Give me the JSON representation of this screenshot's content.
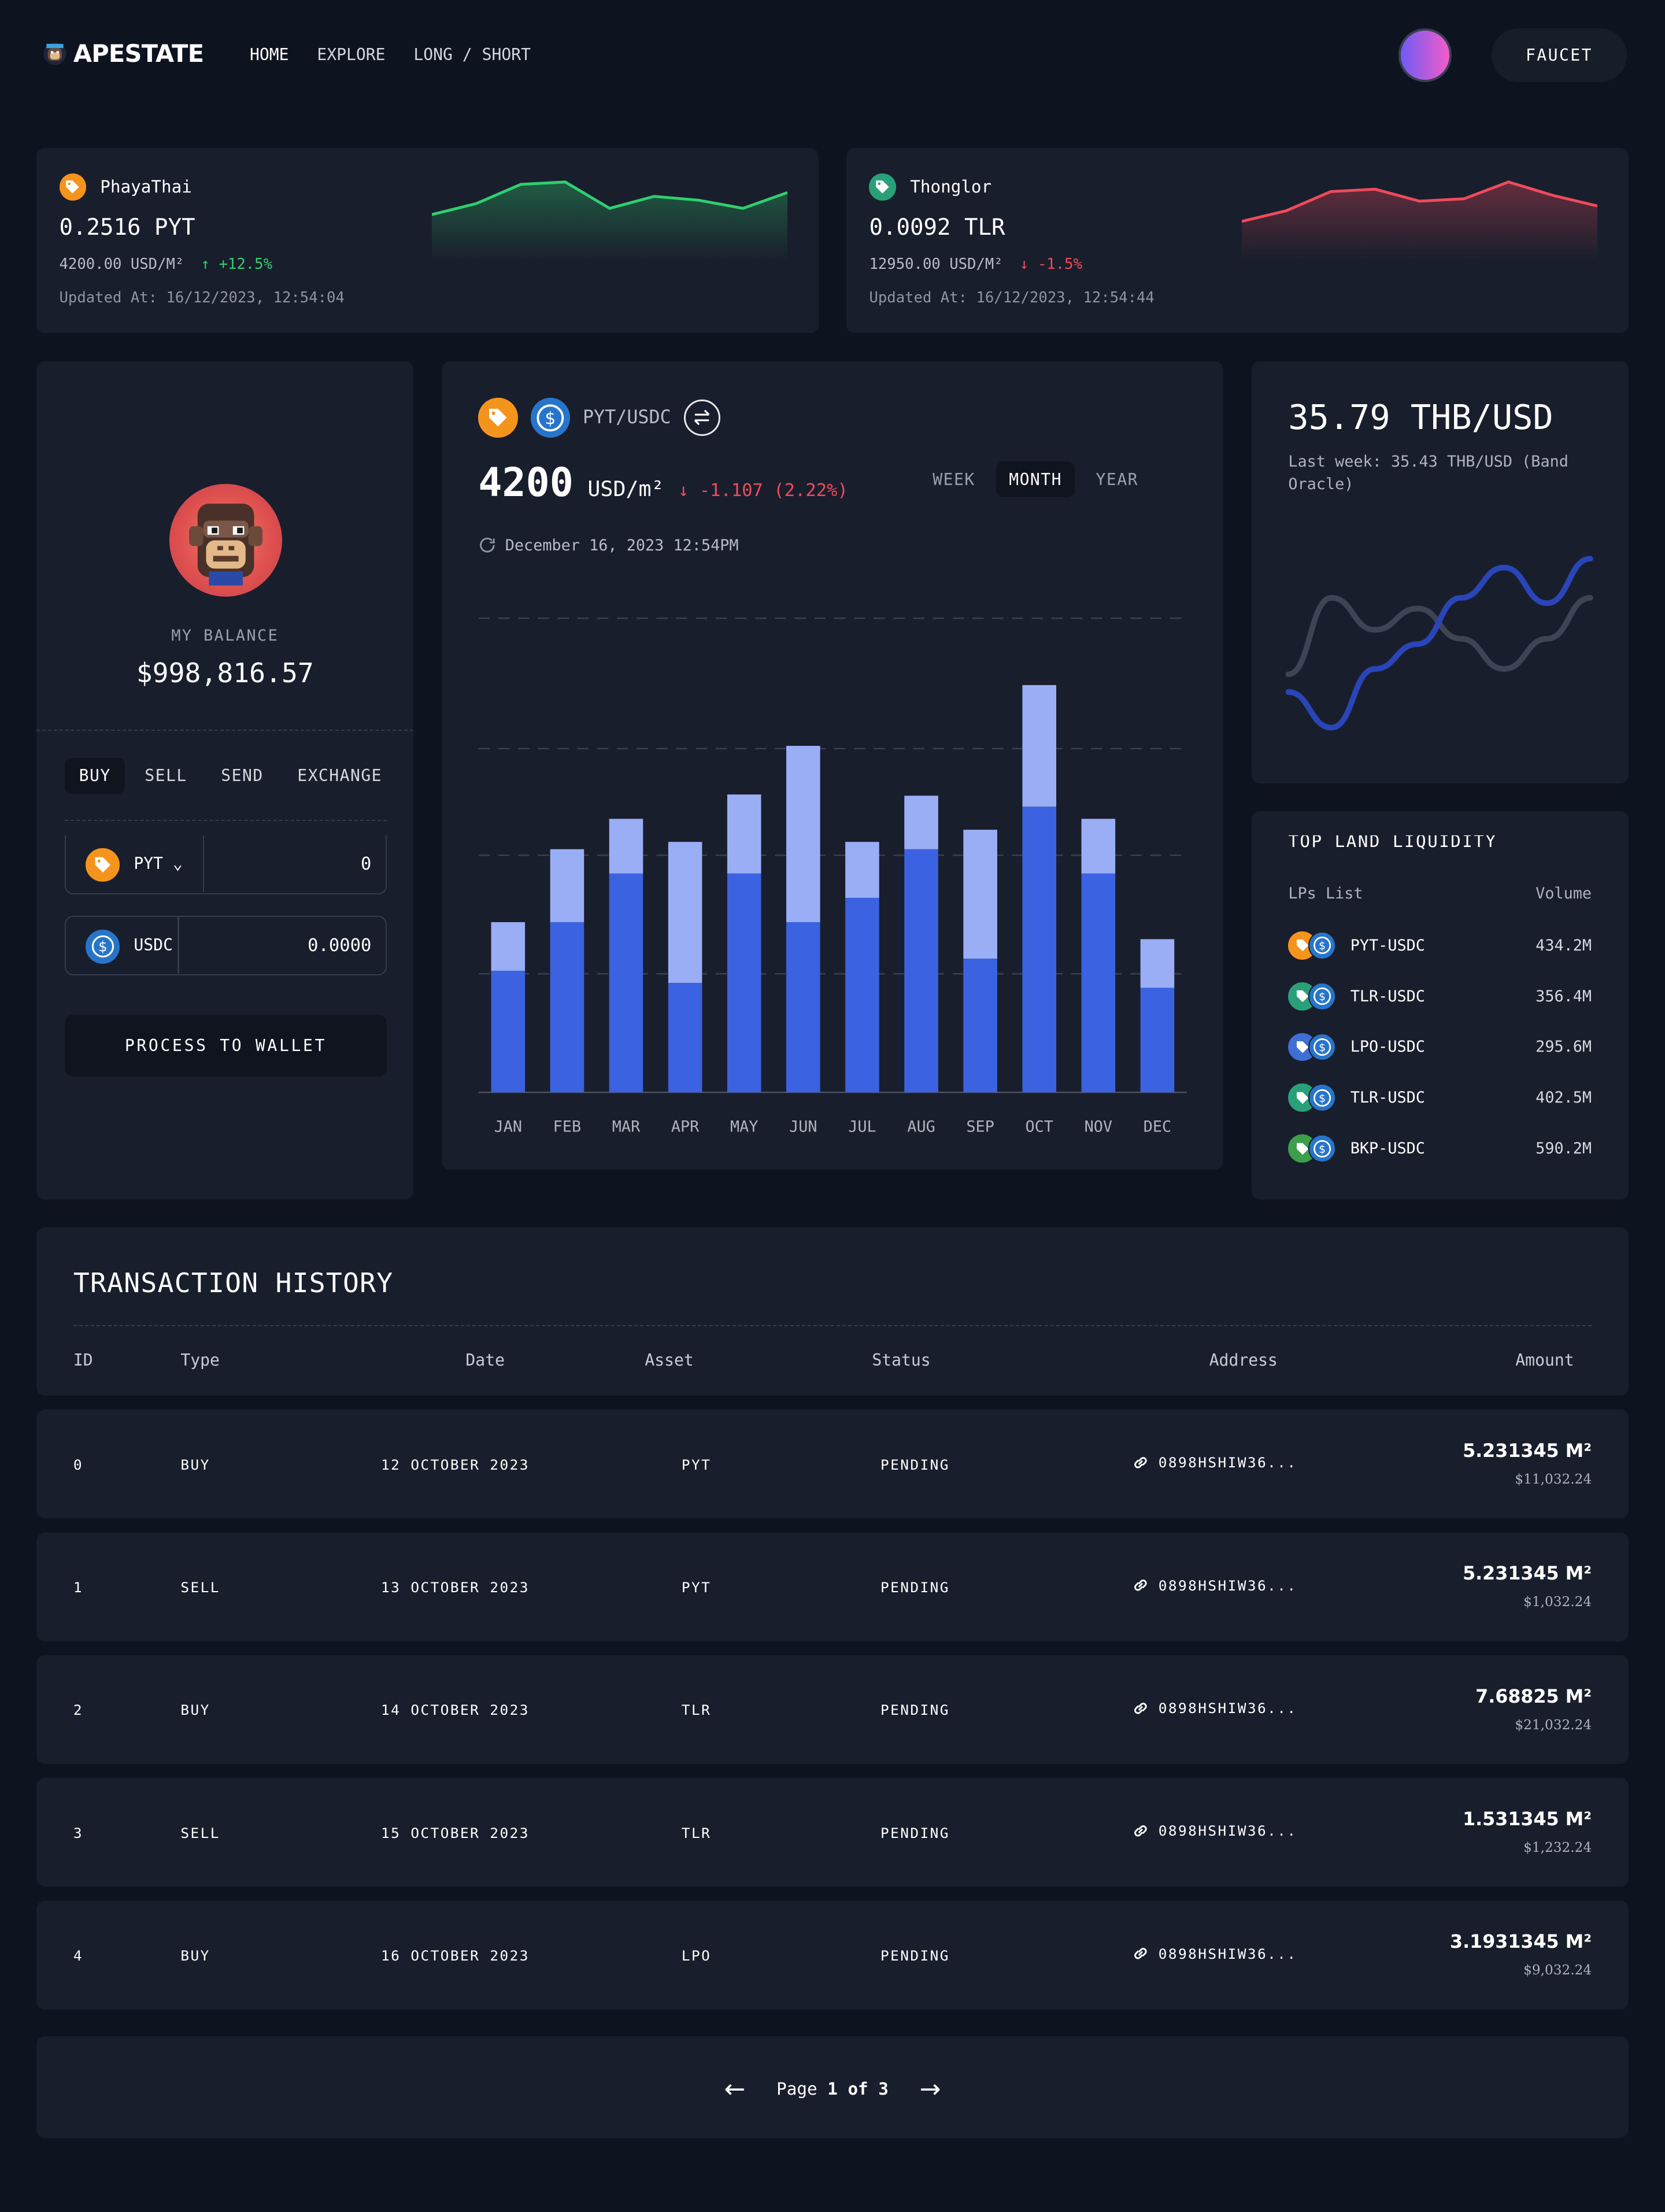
{
  "header": {
    "brand": "APESTATE",
    "nav": [
      "HOME",
      "EXPLORE",
      "LONG / SHORT"
    ],
    "faucet_label": "FAUCET"
  },
  "tickers": [
    {
      "name": "PhayaThai",
      "price": "0.2516 PYT",
      "usd": "4200.00 USD/M²",
      "change": "+12.5%",
      "updated": "Updated At: 16/12/2023, 12:54:04",
      "color": "#2fcf6f",
      "icon_color": "#f5941d",
      "spark": [
        0.32,
        0.55,
        0.95,
        1.0,
        0.45,
        0.7,
        0.62,
        0.45,
        0.78
      ]
    },
    {
      "name": "Thonglor",
      "price": "0.0092 TLR",
      "usd": "12950.00 USD/M²",
      "change": "-1.5%",
      "updated": "Updated At: 16/12/2023, 12:54:44",
      "color": "#ef4b5c",
      "icon_color": "#2aa079",
      "spark": [
        0.18,
        0.4,
        0.8,
        0.85,
        0.6,
        0.65,
        1.0,
        0.72,
        0.5
      ]
    }
  ],
  "balance": {
    "label": "MY BALANCE",
    "value": "$998,816.57",
    "tabs": [
      "BUY",
      "SELL",
      "SEND",
      "EXCHANGE"
    ],
    "from": {
      "symbol": "PYT",
      "value": "0"
    },
    "to": {
      "symbol": "USDC",
      "value": "0.0000"
    },
    "process_label": "PROCESS TO WALLET"
  },
  "chart_card": {
    "pair": "PYT/USDC",
    "price": "4200",
    "unit": "USD/m²",
    "change": "↓ -1.107 (2.22%)",
    "periods": [
      "WEEK",
      "MONTH",
      "YEAR"
    ],
    "date": "December 16, 2023 12:54PM"
  },
  "chart_data": {
    "type": "bar",
    "categories": [
      "JAN",
      "FEB",
      "MAR",
      "APR",
      "MAY",
      "JUN",
      "JUL",
      "AUG",
      "SEP",
      "OCT",
      "NOV",
      "DEC"
    ],
    "series": [
      {
        "values": [
          100,
          140,
          180,
          90,
          180,
          140,
          160,
          200,
          110,
          235,
          180,
          86
        ],
        "color": "#3b62e0"
      },
      {
        "values": [
          40,
          60,
          45,
          116,
          65,
          145,
          46,
          44,
          106,
          100,
          45,
          40
        ],
        "color": "#9aaef5"
      }
    ],
    "ylim": [
      0,
      390
    ],
    "grid": true
  },
  "thb": {
    "value": "35.79 THB/USD",
    "sub": "Last week: 35.43 THB/USD (Band Oracle)",
    "lines": [
      {
        "color": "#2a45b8",
        "values": [
          0.25,
          0.05,
          0.38,
          0.52,
          0.78,
          0.95,
          0.75,
          1.0
        ]
      },
      {
        "color": "#3f4454",
        "values": [
          0.35,
          0.78,
          0.6,
          0.72,
          0.55,
          0.38,
          0.55,
          0.78
        ]
      }
    ]
  },
  "liquidity": {
    "title": "TOP LAND LIQUIDITY",
    "col_lps": "LPs List",
    "col_volume": "Volume",
    "rows": [
      {
        "name": "PYT-USDC",
        "volume": "434.2M",
        "color": "#f5941d"
      },
      {
        "name": "TLR-USDC",
        "volume": "356.4M",
        "color": "#2aa079"
      },
      {
        "name": "LPO-USDC",
        "volume": "295.6M",
        "color": "#3d6fd6"
      },
      {
        "name": "TLR-USDC",
        "volume": "402.5M",
        "color": "#2aa079"
      },
      {
        "name": "BKP-USDC",
        "volume": "590.2M",
        "color": "#3c9f4a"
      }
    ]
  },
  "transactions": {
    "title": "TRANSACTION HISTORY",
    "columns": [
      "ID",
      "Type",
      "Date",
      "Asset",
      "Status",
      "Address",
      "Amount"
    ],
    "rows": [
      {
        "id": "0",
        "type": "BUY",
        "date": "12 OCTOBER 2023",
        "asset": "PYT",
        "status": "PENDING",
        "address": "0898HSHIW36...",
        "amount": "5.231345 M²",
        "usd": "$11,032.24"
      },
      {
        "id": "1",
        "type": "SELL",
        "date": "13 OCTOBER 2023",
        "asset": "PYT",
        "status": "PENDING",
        "address": "0898HSHIW36...",
        "amount": "5.231345 M²",
        "usd": "$1,032.24"
      },
      {
        "id": "2",
        "type": "BUY",
        "date": "14 OCTOBER 2023",
        "asset": "TLR",
        "status": "PENDING",
        "address": "0898HSHIW36...",
        "amount": "7.68825 M²",
        "usd": "$21,032.24"
      },
      {
        "id": "3",
        "type": "SELL",
        "date": "15 OCTOBER 2023",
        "asset": "TLR",
        "status": "PENDING",
        "address": "0898HSHIW36...",
        "amount": "1.531345 M²",
        "usd": "$1,232.24"
      },
      {
        "id": "4",
        "type": "BUY",
        "date": "16 OCTOBER 2023",
        "asset": "LPO",
        "status": "PENDING",
        "address": "0898HSHIW36...",
        "amount": "3.1931345 M²",
        "usd": "$9,032.24"
      }
    ],
    "pager": {
      "prefix": "Page",
      "current": "1 of 3"
    }
  }
}
